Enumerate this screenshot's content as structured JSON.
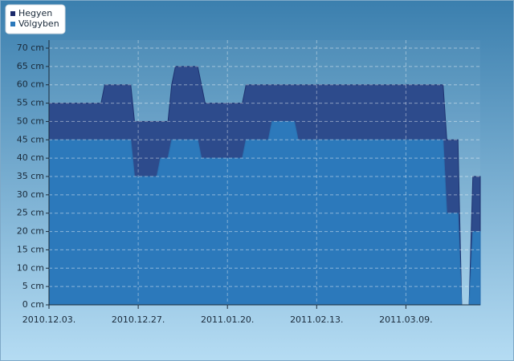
{
  "chart_data": {
    "type": "area",
    "x": [
      "2010.12.03.",
      "2010.12.04.",
      "2010.12.05.",
      "2010.12.06.",
      "2010.12.07.",
      "2010.12.08.",
      "2010.12.09.",
      "2010.12.10.",
      "2010.12.11.",
      "2010.12.12.",
      "2010.12.13.",
      "2010.12.14.",
      "2010.12.15.",
      "2010.12.16.",
      "2010.12.17.",
      "2010.12.18.",
      "2010.12.19.",
      "2010.12.20.",
      "2010.12.21.",
      "2010.12.22.",
      "2010.12.23.",
      "2010.12.24.",
      "2010.12.25.",
      "2010.12.26.",
      "2010.12.27.",
      "2010.12.28.",
      "2010.12.29.",
      "2010.12.30.",
      "2010.12.31.",
      "2011.01.01.",
      "2011.01.02.",
      "2011.01.03.",
      "2011.01.04.",
      "2011.01.05.",
      "2011.01.06.",
      "2011.01.07.",
      "2011.01.08.",
      "2011.01.09.",
      "2011.01.10.",
      "2011.01.11.",
      "2011.01.12.",
      "2011.01.13.",
      "2011.01.14.",
      "2011.01.15.",
      "2011.01.16.",
      "2011.01.17.",
      "2011.01.18.",
      "2011.01.19.",
      "2011.01.20.",
      "2011.01.21.",
      "2011.01.22.",
      "2011.01.23.",
      "2011.01.24.",
      "2011.01.25.",
      "2011.01.26.",
      "2011.01.27.",
      "2011.01.28.",
      "2011.01.29.",
      "2011.01.30.",
      "2011.01.31.",
      "2011.02.01.",
      "2011.02.02.",
      "2011.02.03.",
      "2011.02.04.",
      "2011.02.05.",
      "2011.02.06.",
      "2011.02.07.",
      "2011.02.08.",
      "2011.02.09.",
      "2011.02.10.",
      "2011.02.11.",
      "2011.02.12.",
      "2011.02.13.",
      "2011.02.14.",
      "2011.02.15.",
      "2011.02.16.",
      "2011.02.17.",
      "2011.02.18.",
      "2011.02.19.",
      "2011.02.20.",
      "2011.02.21.",
      "2011.02.22.",
      "2011.02.23.",
      "2011.02.24.",
      "2011.02.25.",
      "2011.02.26.",
      "2011.02.27.",
      "2011.02.28.",
      "2011.03.01.",
      "2011.03.02.",
      "2011.03.03.",
      "2011.03.04.",
      "2011.03.05.",
      "2011.03.06.",
      "2011.03.07.",
      "2011.03.08.",
      "2011.03.09.",
      "2011.03.10.",
      "2011.03.11.",
      "2011.03.12.",
      "2011.03.13.",
      "2011.03.14.",
      "2011.03.15.",
      "2011.03.16.",
      "2011.03.17.",
      "2011.03.18.",
      "2011.03.19.",
      "2011.03.20.",
      "2011.03.21.",
      "2011.03.22.",
      "2011.03.23.",
      "2011.03.24.",
      "2011.03.25.",
      "2011.03.26.",
      "2011.03.27.",
      "2011.03.28.",
      "2011.03.29."
    ],
    "series": [
      {
        "name": "Hegyen",
        "color": "#2d4b8c",
        "values": [
          55,
          55,
          55,
          55,
          55,
          55,
          55,
          55,
          55,
          55,
          55,
          55,
          55,
          55,
          55,
          60,
          60,
          60,
          60,
          60,
          60,
          60,
          60,
          50,
          50,
          50,
          50,
          50,
          50,
          50,
          50,
          50,
          50,
          60,
          65,
          65,
          65,
          65,
          65,
          65,
          65,
          60,
          55,
          55,
          55,
          55,
          55,
          55,
          55,
          55,
          55,
          55,
          55,
          60,
          60,
          60,
          60,
          60,
          60,
          60,
          60,
          60,
          60,
          60,
          60,
          60,
          60,
          60,
          60,
          60,
          60,
          60,
          60,
          60,
          60,
          60,
          60,
          60,
          60,
          60,
          60,
          60,
          60,
          60,
          60,
          60,
          60,
          60,
          60,
          60,
          60,
          60,
          60,
          60,
          60,
          60,
          60,
          60,
          60,
          60,
          60,
          60,
          60,
          60,
          60,
          60,
          60,
          45,
          45,
          45,
          45,
          0,
          0,
          0,
          35,
          35,
          35
        ]
      },
      {
        "name": "Völgyben",
        "color": "#2c79bb",
        "values": [
          45,
          45,
          45,
          45,
          45,
          45,
          45,
          45,
          45,
          45,
          45,
          45,
          45,
          45,
          45,
          45,
          45,
          45,
          45,
          45,
          45,
          45,
          45,
          35,
          35,
          35,
          35,
          35,
          35,
          35,
          40,
          40,
          40,
          45,
          45,
          45,
          45,
          45,
          45,
          45,
          45,
          40,
          40,
          40,
          40,
          40,
          40,
          40,
          40,
          40,
          40,
          40,
          40,
          45,
          45,
          45,
          45,
          45,
          45,
          45,
          50,
          50,
          50,
          50,
          50,
          50,
          50,
          45,
          45,
          45,
          45,
          45,
          45,
          45,
          45,
          45,
          45,
          45,
          45,
          45,
          45,
          45,
          45,
          45,
          45,
          45,
          45,
          45,
          45,
          45,
          45,
          45,
          45,
          45,
          45,
          45,
          45,
          45,
          45,
          45,
          45,
          45,
          45,
          45,
          45,
          45,
          45,
          25,
          25,
          25,
          25,
          0,
          0,
          0,
          20,
          20,
          20
        ]
      }
    ],
    "xticks": [
      "2010.12.03.",
      "2010.12.27.",
      "2011.01.20.",
      "2011.02.13.",
      "2011.03.09."
    ],
    "ylim": [
      0,
      70
    ],
    "yticks": [
      {
        "value": 0,
        "label": "0 cm"
      },
      {
        "value": 5,
        "label": "5 cm"
      },
      {
        "value": 10,
        "label": "10 cm"
      },
      {
        "value": 15,
        "label": "15 cm"
      },
      {
        "value": 20,
        "label": "20 cm"
      },
      {
        "value": 25,
        "label": "25 cm"
      },
      {
        "value": 30,
        "label": "30 cm"
      },
      {
        "value": 35,
        "label": "35 cm"
      },
      {
        "value": 40,
        "label": "40 cm"
      },
      {
        "value": 45,
        "label": "45 cm"
      },
      {
        "value": 50,
        "label": "50 cm"
      },
      {
        "value": 55,
        "label": "55 cm"
      },
      {
        "value": 60,
        "label": "60 cm"
      },
      {
        "value": 65,
        "label": "65 cm"
      },
      {
        "value": 70,
        "label": "70 cm"
      }
    ],
    "grid": true,
    "legend": "top-left"
  }
}
